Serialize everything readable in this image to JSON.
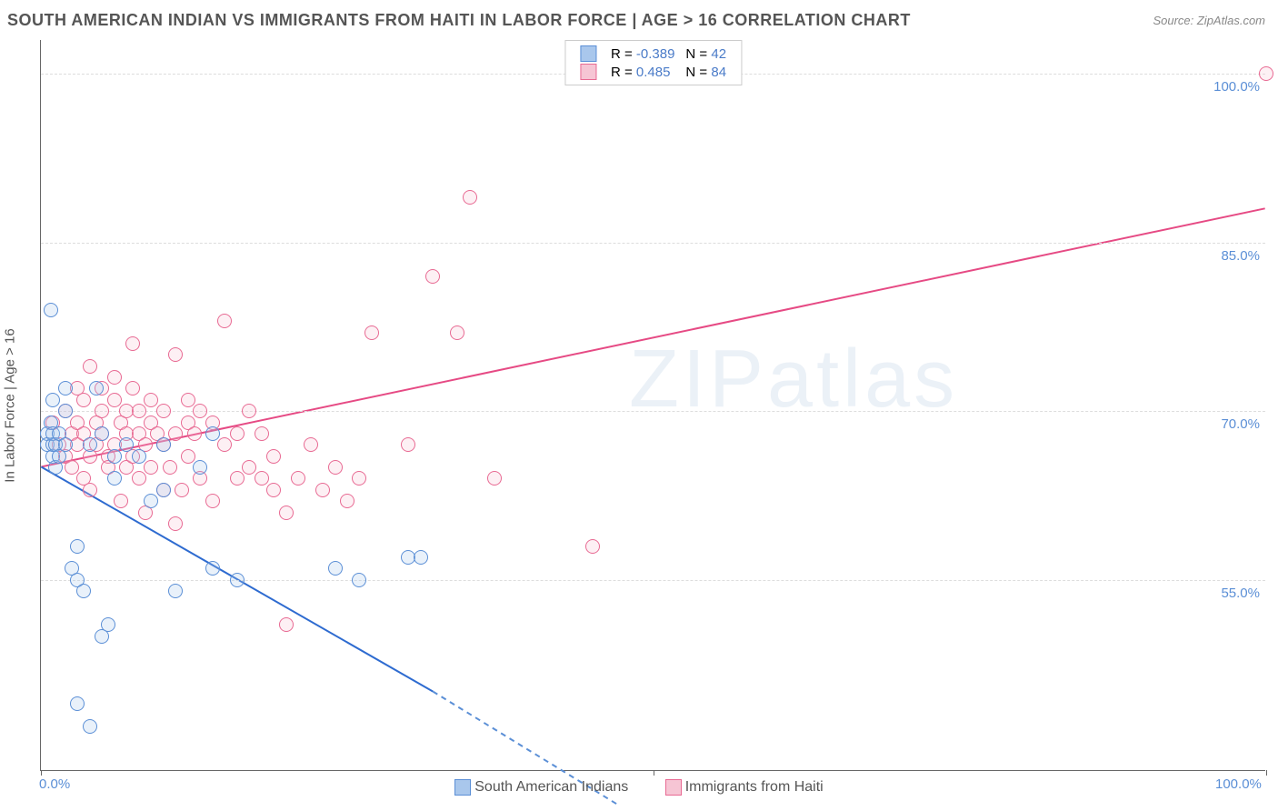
{
  "header": {
    "title": "SOUTH AMERICAN INDIAN VS IMMIGRANTS FROM HAITI IN LABOR FORCE | AGE > 16 CORRELATION CHART",
    "source": "Source: ZipAtlas.com"
  },
  "chart": {
    "type": "scatter",
    "ylabel": "In Labor Force | Age > 16",
    "xlim": [
      0,
      100
    ],
    "ylim": [
      38,
      103
    ],
    "xticks": [
      0,
      50,
      100
    ],
    "xtick_labels": [
      "0.0%",
      "",
      "100.0%"
    ],
    "yticks": [
      55,
      70,
      85,
      100
    ],
    "ytick_labels": [
      "55.0%",
      "70.0%",
      "85.0%",
      "100.0%"
    ],
    "background_color": "#ffffff",
    "grid_color": "#dddddd",
    "axis_color": "#666666",
    "tick_label_color": "#5b8fd6",
    "marker_radius": 8,
    "marker_stroke_width": 1.5,
    "marker_fill_opacity": 0.25,
    "line_width": 2,
    "watermark": "ZIPatlas",
    "series": [
      {
        "id": "blue",
        "label": "South American Indians",
        "R": "-0.389",
        "N": "42",
        "fill": "#a9c7ec",
        "stroke": "#5b8fd6",
        "line_color": "#2e6bd0",
        "trend": {
          "x1": 0,
          "y1": 65,
          "x2": 32,
          "y2": 45,
          "dash_to_x": 47,
          "dash_to_y": 35
        },
        "points": [
          [
            0.5,
            68
          ],
          [
            0.5,
            67
          ],
          [
            0.8,
            69
          ],
          [
            0.8,
            79
          ],
          [
            1,
            66
          ],
          [
            1,
            67
          ],
          [
            1,
            68
          ],
          [
            1,
            71
          ],
          [
            1.2,
            65
          ],
          [
            1.2,
            67
          ],
          [
            1.5,
            68
          ],
          [
            1.5,
            66
          ],
          [
            2,
            67
          ],
          [
            2,
            72
          ],
          [
            2,
            70
          ],
          [
            2.5,
            56
          ],
          [
            3,
            44
          ],
          [
            3,
            55
          ],
          [
            3,
            58
          ],
          [
            3.5,
            54
          ],
          [
            4,
            42
          ],
          [
            4,
            67
          ],
          [
            4.5,
            72
          ],
          [
            5,
            68
          ],
          [
            5,
            50
          ],
          [
            5.5,
            51
          ],
          [
            6,
            66
          ],
          [
            6,
            64
          ],
          [
            7,
            67
          ],
          [
            8,
            66
          ],
          [
            9,
            62
          ],
          [
            10,
            63
          ],
          [
            10,
            67
          ],
          [
            11,
            54
          ],
          [
            13,
            65
          ],
          [
            14,
            56
          ],
          [
            14,
            68
          ],
          [
            16,
            55
          ],
          [
            24,
            56
          ],
          [
            26,
            55
          ],
          [
            30,
            57
          ],
          [
            31,
            57
          ]
        ]
      },
      {
        "id": "pink",
        "label": "Immigrants from Haiti",
        "R": "0.485",
        "N": "84",
        "fill": "#f6c5d4",
        "stroke": "#e86a93",
        "line_color": "#e64a84",
        "trend": {
          "x1": 0,
          "y1": 65,
          "x2": 100,
          "y2": 88
        },
        "points": [
          [
            1,
            69
          ],
          [
            1.5,
            67
          ],
          [
            2,
            66
          ],
          [
            2,
            70
          ],
          [
            2.5,
            68
          ],
          [
            2.5,
            65
          ],
          [
            3,
            69
          ],
          [
            3,
            67
          ],
          [
            3,
            72
          ],
          [
            3.5,
            64
          ],
          [
            3.5,
            68
          ],
          [
            3.5,
            71
          ],
          [
            4,
            66
          ],
          [
            4,
            74
          ],
          [
            4,
            63
          ],
          [
            4.5,
            67
          ],
          [
            4.5,
            69
          ],
          [
            5,
            68
          ],
          [
            5,
            70
          ],
          [
            5,
            72
          ],
          [
            5.5,
            66
          ],
          [
            5.5,
            65
          ],
          [
            6,
            71
          ],
          [
            6,
            73
          ],
          [
            6,
            67
          ],
          [
            6.5,
            69
          ],
          [
            6.5,
            62
          ],
          [
            7,
            68
          ],
          [
            7,
            70
          ],
          [
            7,
            65
          ],
          [
            7.5,
            66
          ],
          [
            7.5,
            72
          ],
          [
            7.5,
            76
          ],
          [
            8,
            68
          ],
          [
            8,
            70
          ],
          [
            8,
            64
          ],
          [
            8.5,
            67
          ],
          [
            8.5,
            61
          ],
          [
            9,
            69
          ],
          [
            9,
            71
          ],
          [
            9,
            65
          ],
          [
            9.5,
            68
          ],
          [
            10,
            67
          ],
          [
            10,
            70
          ],
          [
            10,
            63
          ],
          [
            10.5,
            65
          ],
          [
            11,
            60
          ],
          [
            11,
            68
          ],
          [
            11,
            75
          ],
          [
            11.5,
            63
          ],
          [
            12,
            69
          ],
          [
            12,
            71
          ],
          [
            12,
            66
          ],
          [
            12.5,
            68
          ],
          [
            13,
            64
          ],
          [
            13,
            70
          ],
          [
            14,
            69
          ],
          [
            14,
            62
          ],
          [
            15,
            67
          ],
          [
            15,
            78
          ],
          [
            16,
            64
          ],
          [
            16,
            68
          ],
          [
            17,
            65
          ],
          [
            17,
            70
          ],
          [
            18,
            64
          ],
          [
            18,
            68
          ],
          [
            19,
            63
          ],
          [
            19,
            66
          ],
          [
            20,
            61
          ],
          [
            20,
            51
          ],
          [
            21,
            64
          ],
          [
            22,
            67
          ],
          [
            23,
            63
          ],
          [
            24,
            65
          ],
          [
            25,
            62
          ],
          [
            26,
            64
          ],
          [
            27,
            77
          ],
          [
            30,
            67
          ],
          [
            32,
            82
          ],
          [
            34,
            77
          ],
          [
            35,
            89
          ],
          [
            37,
            64
          ],
          [
            45,
            58
          ],
          [
            100,
            100
          ]
        ]
      }
    ],
    "legend_top": {
      "prefix_R": "R = ",
      "prefix_N": "N = "
    },
    "legend_bottom_labels": [
      "South American Indians",
      "Immigrants from Haiti"
    ]
  }
}
